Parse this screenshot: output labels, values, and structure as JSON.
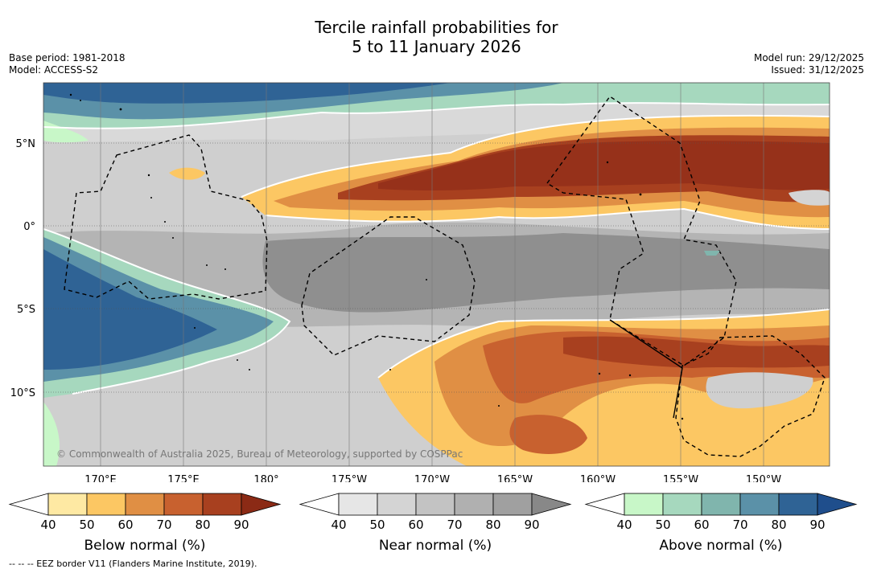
{
  "title_line1": "Tercile rainfall probabilities for",
  "title_line2": "5 to 11 January 2026",
  "base_period": "Base period: 1981-2018",
  "model": "Model: ACCESS-S2",
  "model_run": "Model run: 29/12/2025",
  "issued": "Issued: 31/12/2025",
  "credit": "© Commonwealth of Australia 2025, Bureau of Meteorology, supported by COSPPac",
  "eez_note": "-- -- -- EEZ border V11 (Flanders Marine Institute, 2019).",
  "lat_labels": [
    "5°N",
    "0°",
    "5°S",
    "10°S"
  ],
  "lon_labels": [
    "170°E",
    "175°E",
    "180°",
    "175°W",
    "170°W",
    "165°W",
    "160°W",
    "155°W",
    "150°W"
  ],
  "colorbars": [
    {
      "label": "Below normal (%)",
      "ticks": [
        "40",
        "50",
        "60",
        "70",
        "80",
        "90"
      ],
      "colors": [
        "#ffffff",
        "#fee9a3",
        "#fcc763",
        "#e08f44",
        "#c8612f",
        "#a8401f",
        "#8b2a15"
      ]
    },
    {
      "label": "Near normal (%)",
      "ticks": [
        "40",
        "50",
        "60",
        "70",
        "80",
        "90"
      ],
      "colors": [
        "#ffffff",
        "#e6e6e6",
        "#d4d4d4",
        "#c3c3c3",
        "#b0b0b0",
        "#a0a0a0",
        "#888888"
      ]
    },
    {
      "label": "Above normal (%)",
      "ticks": [
        "40",
        "50",
        "60",
        "70",
        "80",
        "90"
      ],
      "colors": [
        "#ffffff",
        "#c8f7c8",
        "#a6d8be",
        "#80b5ad",
        "#5b91a8",
        "#2f6395",
        "#1f4e8c"
      ]
    }
  ]
}
